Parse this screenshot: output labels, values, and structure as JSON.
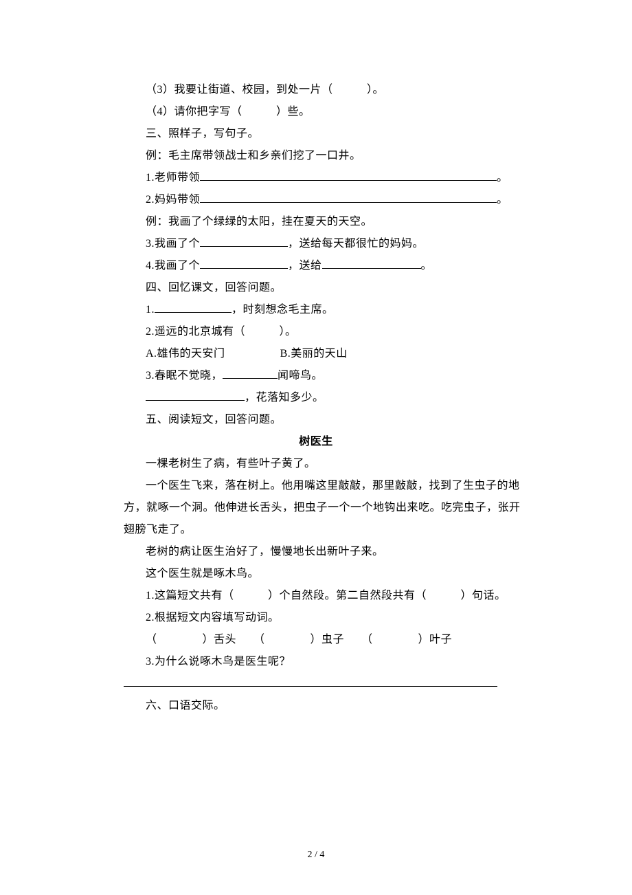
{
  "q_cont": {
    "item3": "（3）我要让街道、校园，到处一片（　　　）。",
    "item4": "（4）请你把字写（　　　）些。"
  },
  "sec3": {
    "title": "三、照样子，写句子。",
    "example1": "例：毛主席带领战士和乡亲们挖了一口井。",
    "q1_prefix": "1.老师带领",
    "q2_prefix": "2.妈妈带领",
    "end_punct": "。",
    "example2": "例：我画了个绿绿的太阳，挂在夏天的天空。",
    "q3_prefix": "3.我画了个",
    "q3_suffix": "，送给每天都很忙的妈妈。",
    "q4_prefix": "4.我画了个",
    "q4_mid": "，送给",
    "q4_end": "。"
  },
  "sec4": {
    "title": "四、回忆课文，回答问题。",
    "q1_prefix": "1.",
    "q1_suffix": "，时刻想念毛主席。",
    "q2": "2.遥远的北京城有（　　　）。",
    "opt_a": "A.雄伟的天安门",
    "opt_b": "B.美丽的天山",
    "q3_prefix": "3.春眠不觉晓，",
    "q3_suffix": "闻啼鸟。",
    "q3b_suffix": "，花落知多少。"
  },
  "sec5": {
    "title": "五、阅读短文，回答问题。",
    "passage_title": "树医生",
    "p1": "一棵老树生了病，有些叶子黄了。",
    "p2a": "一个医生飞来，落在树上。他用嘴这里敲敲，那里敲敲，找到了生虫子的地",
    "p2b": "方，就啄一个洞。他伸进长舌头，把虫子一个一个地钩出来吃。吃完虫子，张开",
    "p2c": "翅膀飞走了。",
    "p3": "老树的病让医生治好了，慢慢地长出新叶子来。",
    "p4": "这个医生就是啄木鸟。",
    "q1": "1.这篇短文共有（　　　）个自然段。第二自然段共有（　　　）句话。",
    "q2": "2.根据短文内容填写动词。",
    "q2_fill": "（　　　　）舌头　　（　　　　）虫子　　（　　　　）叶子",
    "q3": "3.为什么说啄木鸟是医生呢？"
  },
  "sec6": {
    "title": "六、口语交际。"
  },
  "footer": "2 / 4"
}
